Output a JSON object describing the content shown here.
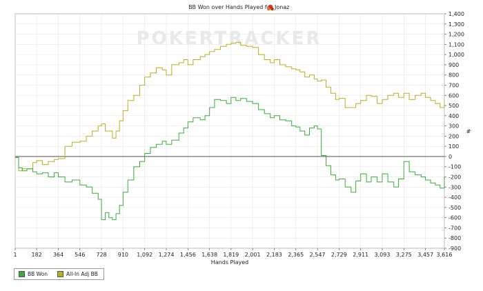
{
  "chart_data": {
    "type": "line",
    "title_prefix": "BB Won over Hands Played for",
    "title_name": "Jonaz",
    "watermark": "POKERTRACKER",
    "xlabel": "Hands Played",
    "ylabel": "#",
    "xlim": [
      1,
      3616
    ],
    "ylim": [
      -900,
      1400
    ],
    "x_ticks": [
      1,
      182,
      364,
      546,
      728,
      910,
      1092,
      1274,
      1456,
      1638,
      1819,
      2001,
      2183,
      2365,
      2547,
      2729,
      2911,
      3093,
      3275,
      3457,
      3616
    ],
    "y_ticks": [
      -900,
      -800,
      -700,
      -600,
      -500,
      -400,
      -300,
      -200,
      -100,
      0,
      100,
      200,
      300,
      400,
      500,
      600,
      700,
      800,
      900,
      1000,
      1100,
      1200,
      1300,
      1400
    ],
    "grid": true,
    "legend_position": "bottom-left",
    "series": [
      {
        "name": "BB Won",
        "color": "#3aaa3a",
        "x": [
          1,
          30,
          60,
          100,
          150,
          182,
          230,
          280,
          330,
          364,
          420,
          480,
          546,
          600,
          650,
          700,
          728,
          760,
          790,
          820,
          850,
          880,
          910,
          950,
          1000,
          1050,
          1092,
          1140,
          1190,
          1240,
          1274,
          1320,
          1380,
          1420,
          1456,
          1500,
          1560,
          1600,
          1638,
          1680,
          1730,
          1780,
          1819,
          1860,
          1900,
          1950,
          2001,
          2050,
          2100,
          2150,
          2183,
          2230,
          2280,
          2330,
          2365,
          2400,
          2440,
          2480,
          2520,
          2547,
          2580,
          2620,
          2660,
          2700,
          2729,
          2780,
          2830,
          2870,
          2911,
          2960,
          3000,
          3050,
          3093,
          3140,
          3190,
          3230,
          3275,
          3320,
          3370,
          3420,
          3457,
          3500,
          3540,
          3580,
          3616
        ],
        "y": [
          -10,
          -110,
          -140,
          -120,
          -150,
          -170,
          -160,
          -200,
          -160,
          -200,
          -250,
          -230,
          -280,
          -300,
          -360,
          -420,
          -620,
          -550,
          -600,
          -620,
          -560,
          -480,
          -350,
          -230,
          -100,
          -50,
          30,
          90,
          120,
          150,
          120,
          160,
          230,
          280,
          340,
          380,
          360,
          400,
          480,
          560,
          550,
          520,
          580,
          550,
          570,
          540,
          520,
          460,
          420,
          380,
          400,
          360,
          350,
          300,
          290,
          250,
          210,
          280,
          300,
          270,
          10,
          -90,
          -180,
          -230,
          -220,
          -300,
          -350,
          -240,
          -170,
          -250,
          -200,
          -250,
          -170,
          -250,
          -300,
          -220,
          -50,
          -150,
          -180,
          -200,
          -230,
          -260,
          -280,
          -310,
          -200
        ]
      },
      {
        "name": "All-In Adj BB",
        "color": "#b5b020",
        "x": [
          1,
          30,
          60,
          100,
          150,
          182,
          230,
          280,
          330,
          364,
          420,
          480,
          546,
          600,
          650,
          700,
          728,
          760,
          790,
          820,
          850,
          880,
          910,
          950,
          1000,
          1050,
          1092,
          1140,
          1190,
          1240,
          1274,
          1320,
          1380,
          1420,
          1456,
          1500,
          1560,
          1600,
          1638,
          1680,
          1730,
          1780,
          1819,
          1860,
          1900,
          1950,
          2001,
          2050,
          2100,
          2150,
          2183,
          2230,
          2280,
          2330,
          2365,
          2400,
          2440,
          2480,
          2520,
          2547,
          2580,
          2620,
          2660,
          2700,
          2729,
          2780,
          2830,
          2870,
          2911,
          2960,
          3000,
          3050,
          3093,
          3140,
          3190,
          3230,
          3275,
          3320,
          3370,
          3420,
          3457,
          3500,
          3540,
          3580,
          3616
        ],
        "y": [
          -10,
          -140,
          -120,
          -120,
          -60,
          -40,
          -80,
          -50,
          -30,
          -20,
          100,
          140,
          150,
          200,
          250,
          300,
          320,
          250,
          250,
          180,
          250,
          350,
          450,
          550,
          600,
          700,
          780,
          820,
          870,
          850,
          800,
          900,
          920,
          950,
          900,
          950,
          980,
          1000,
          1030,
          1050,
          1080,
          1100,
          1110,
          1120,
          1090,
          1080,
          1070,
          1000,
          950,
          920,
          950,
          900,
          880,
          860,
          850,
          830,
          780,
          800,
          760,
          740,
          750,
          680,
          620,
          560,
          570,
          480,
          480,
          520,
          550,
          600,
          590,
          520,
          560,
          600,
          620,
          580,
          620,
          560,
          600,
          620,
          580,
          550,
          520,
          480,
          560
        ]
      }
    ]
  }
}
